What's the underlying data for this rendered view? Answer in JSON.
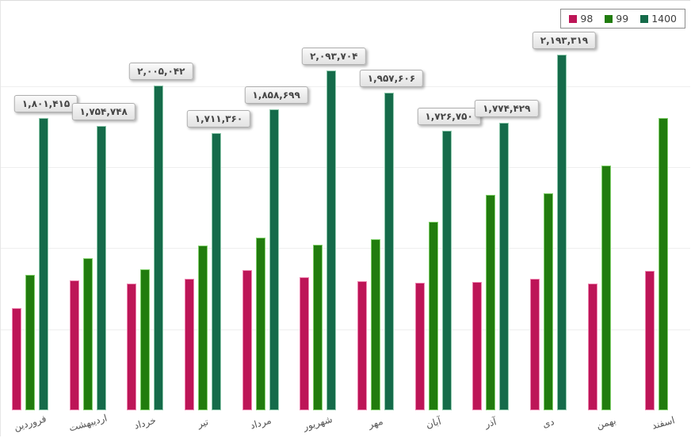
{
  "colors": {
    "series_98": "#bd1557",
    "series_99": "#217c0e",
    "series_1400": "#156b4a",
    "gridline": "#efefef",
    "label_box_bg": "#ececec",
    "label_box_border": "#aeaeae",
    "text": "#454545"
  },
  "legend": {
    "items": [
      {
        "label": "98",
        "color": "#bd1557"
      },
      {
        "label": "99",
        "color": "#217c0e"
      },
      {
        "label": "1400",
        "color": "#156b4a"
      }
    ]
  },
  "chart_data": {
    "type": "bar",
    "title": "",
    "xlabel": "",
    "ylabel": "",
    "rtl": true,
    "value_axis_visible": false,
    "legend_position": "top-right",
    "grid": "horizontal-faint",
    "gridline_values": [
      500000,
      1000000,
      1500000,
      2000000
    ],
    "ylim": [
      0,
      2500000
    ],
    "categories": [
      "فروردین",
      "اردیبهشت",
      "خرداد",
      "تیر",
      "مرداد",
      "شهریور",
      "مهر",
      "آبان",
      "آذر",
      "دی",
      "بهمن",
      "اسفند"
    ],
    "series": [
      {
        "name": "98",
        "estimated": true,
        "values": [
          630000,
          801000,
          781000,
          811000,
          865000,
          820000,
          796000,
          786000,
          791000,
          811000,
          781000,
          860000
        ]
      },
      {
        "name": "99",
        "estimated": true,
        "values": [
          835000,
          938000,
          870000,
          1016000,
          1065000,
          1021000,
          1055000,
          1163000,
          1329000,
          1339000,
          1510000,
          1803000
        ]
      },
      {
        "name": "1400",
        "estimated": false,
        "values": [
          1801415,
          1754748,
          2005042,
          1711360,
          1858699,
          2093704,
          1957606,
          1726750,
          1774429,
          2193319,
          null,
          null
        ],
        "data_labels": [
          "۱,۸۰۱,۴۱۵",
          "۱,۷۵۴,۷۴۸",
          "۲,۰۰۵,۰۴۲",
          "۱,۷۱۱,۳۶۰",
          "۱,۸۵۸,۶۹۹",
          "۲,۰۹۳,۷۰۴",
          "۱,۹۵۷,۶۰۶",
          "۱,۷۲۶,۷۵۰",
          "۱,۷۷۴,۴۲۹",
          "۲,۱۹۳,۳۱۹",
          null,
          null
        ]
      }
    ]
  }
}
